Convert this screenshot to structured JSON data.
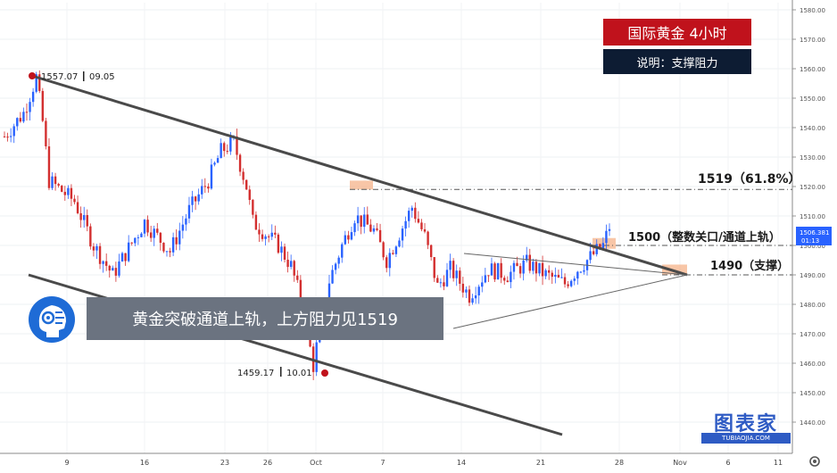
{
  "header": {
    "title": "国际黄金  4小时",
    "subtitle": "说明：支撑阻力"
  },
  "banner": {
    "text": "黄金突破通道上轨，上方阻力见1519"
  },
  "watermark": {
    "title": "图表家",
    "subtitle": "TUBIAOJIA.COM"
  },
  "annotations": {
    "high_price": "1557.07",
    "high_date": "09.05",
    "low_price": "1459.17",
    "low_date": "10.01",
    "level_1519": "1519（61.8%）",
    "level_1500": "1500（整数关口/通道上轨）",
    "level_1490": "1490（支撑）"
  },
  "price_tag": {
    "price": "1506.381",
    "countdown": "01:13"
  },
  "colors": {
    "up": "#2962ff",
    "down": "#d32f2f",
    "trendline": "#4a4a4a",
    "title_bg": "#c0121c",
    "note_bg": "#0d1c33",
    "banner_bg": "#6b7380",
    "zone": "#f5b38a",
    "price_tag": "#2962ff"
  },
  "icons": {
    "avatar": "robot-head-icon",
    "settings": "gear-icon"
  },
  "chart_data": {
    "type": "candlestick",
    "ylim": [
      1435,
      1582
    ],
    "yticks": [
      1440,
      1450,
      1460,
      1470,
      1480,
      1490,
      1500,
      1510,
      1520,
      1530,
      1540,
      1550,
      1560,
      1570,
      1580
    ],
    "xticks": [
      "9",
      "16",
      "23",
      "26",
      "Oct",
      "7",
      "14",
      "21",
      "28",
      "Nov",
      "6",
      "11"
    ],
    "grid": true,
    "levels": [
      1519,
      1500,
      1490
    ],
    "series": [
      {
        "points": [
          [
            0,
            1537
          ],
          [
            6,
            1545
          ],
          [
            8,
            1551
          ],
          [
            10,
            1557.07
          ],
          [
            12,
            1542
          ],
          [
            14,
            1522
          ],
          [
            22,
            1515
          ],
          [
            28,
            1500
          ],
          [
            34,
            1490
          ],
          [
            44,
            1508
          ],
          [
            52,
            1498
          ],
          [
            58,
            1512
          ],
          [
            64,
            1522
          ],
          [
            68,
            1532
          ],
          [
            72,
            1535
          ],
          [
            76,
            1520
          ],
          [
            78,
            1508
          ],
          [
            86,
            1500
          ],
          [
            90,
            1493
          ],
          [
            94,
            1478
          ],
          [
            96,
            1465
          ],
          [
            97,
            1459.17
          ],
          [
            99,
            1472
          ],
          [
            102,
            1488
          ],
          [
            106,
            1500
          ],
          [
            110,
            1510
          ],
          [
            116,
            1505
          ],
          [
            120,
            1495
          ],
          [
            124,
            1504
          ],
          [
            128,
            1513
          ],
          [
            132,
            1503
          ],
          [
            136,
            1486
          ],
          [
            140,
            1492
          ],
          [
            146,
            1483
          ],
          [
            152,
            1492
          ],
          [
            158,
            1490
          ],
          [
            164,
            1494
          ],
          [
            170,
            1490
          ],
          [
            176,
            1487
          ],
          [
            180,
            1492
          ],
          [
            184,
            1496
          ],
          [
            188,
            1500
          ],
          [
            190,
            1506.4
          ]
        ]
      }
    ]
  }
}
